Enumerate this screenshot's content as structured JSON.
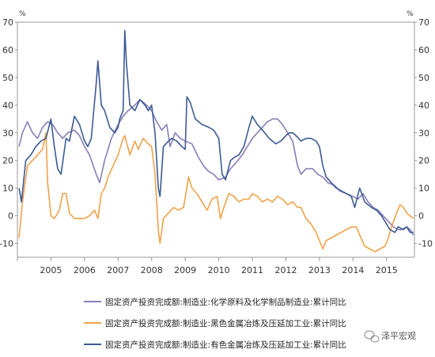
{
  "chart_data": {
    "type": "line",
    "unit_left": "%",
    "unit_right": "%",
    "ylim": [
      -15,
      70
    ],
    "yticks": [
      -10,
      0,
      10,
      20,
      30,
      40,
      50,
      60,
      70
    ],
    "xlim": [
      2004.0,
      2015.83
    ],
    "x_tick_labels": [
      {
        "x": 2005,
        "label": "2005"
      },
      {
        "x": 2006,
        "label": "2006"
      },
      {
        "x": 2007,
        "label": "2007"
      },
      {
        "x": 2008,
        "label": "2008"
      },
      {
        "x": 2009,
        "label": "2009"
      },
      {
        "x": 2010,
        "label": "2010"
      },
      {
        "x": 2011,
        "label": "2011"
      },
      {
        "x": 2012,
        "label": "2012"
      },
      {
        "x": 2013,
        "label": "2013"
      },
      {
        "x": 2014,
        "label": "2014"
      },
      {
        "x": 2015,
        "label": "2015"
      }
    ],
    "grid": false,
    "legend_position": "bottom",
    "series": [
      {
        "name": "固定资产投资完成额:制造业:化学原料及化学制品制造业:累计同比",
        "color": "#8a7db8",
        "points": [
          [
            2004.05,
            25
          ],
          [
            2004.15,
            30
          ],
          [
            2004.3,
            34
          ],
          [
            2004.45,
            30
          ],
          [
            2004.6,
            28
          ],
          [
            2004.75,
            32
          ],
          [
            2004.9,
            34
          ],
          [
            2005.05,
            33
          ],
          [
            2005.2,
            30
          ],
          [
            2005.35,
            28
          ],
          [
            2005.5,
            30
          ],
          [
            2005.7,
            31
          ],
          [
            2005.85,
            29
          ],
          [
            2006.0,
            25
          ],
          [
            2006.15,
            22
          ],
          [
            2006.35,
            15
          ],
          [
            2006.45,
            12
          ],
          [
            2006.6,
            20
          ],
          [
            2006.8,
            28
          ],
          [
            2007.0,
            33
          ],
          [
            2007.15,
            36
          ],
          [
            2007.3,
            38
          ],
          [
            2007.5,
            40
          ],
          [
            2007.65,
            42
          ],
          [
            2007.85,
            40
          ],
          [
            2008.0,
            38
          ],
          [
            2008.15,
            34
          ],
          [
            2008.3,
            31
          ],
          [
            2008.45,
            33
          ],
          [
            2008.55,
            25
          ],
          [
            2008.7,
            30
          ],
          [
            2008.85,
            28
          ],
          [
            2009.0,
            27
          ],
          [
            2009.2,
            26
          ],
          [
            2009.4,
            21
          ],
          [
            2009.55,
            18
          ],
          [
            2009.7,
            16
          ],
          [
            2009.85,
            15
          ],
          [
            2010.0,
            13
          ],
          [
            2010.2,
            14
          ],
          [
            2010.35,
            17
          ],
          [
            2010.5,
            19
          ],
          [
            2010.7,
            22
          ],
          [
            2010.85,
            25
          ],
          [
            2011.0,
            28
          ],
          [
            2011.15,
            30
          ],
          [
            2011.3,
            32
          ],
          [
            2011.45,
            34
          ],
          [
            2011.6,
            35
          ],
          [
            2011.75,
            35
          ],
          [
            2011.9,
            33
          ],
          [
            2012.05,
            30
          ],
          [
            2012.2,
            27
          ],
          [
            2012.35,
            18
          ],
          [
            2012.45,
            15
          ],
          [
            2012.6,
            17
          ],
          [
            2012.8,
            17
          ],
          [
            2012.95,
            15
          ],
          [
            2013.1,
            14
          ],
          [
            2013.25,
            12
          ],
          [
            2013.45,
            11
          ],
          [
            2013.6,
            9
          ],
          [
            2013.8,
            8
          ],
          [
            2014.0,
            7
          ],
          [
            2014.15,
            6
          ],
          [
            2014.3,
            8
          ],
          [
            2014.45,
            5
          ],
          [
            2014.6,
            3
          ],
          [
            2014.75,
            2
          ],
          [
            2014.9,
            0
          ],
          [
            2015.05,
            -2
          ],
          [
            2015.2,
            -4
          ],
          [
            2015.35,
            -5
          ],
          [
            2015.45,
            -5
          ],
          [
            2015.6,
            -4
          ],
          [
            2015.7,
            -5
          ],
          [
            2015.8,
            -7
          ]
        ]
      },
      {
        "name": "固定资产投资完成额:制造业:黑色金属冶炼及压延加工业:累计同比",
        "color": "#f0a24a",
        "points": [
          [
            2004.05,
            -8
          ],
          [
            2004.15,
            5
          ],
          [
            2004.3,
            18
          ],
          [
            2004.45,
            20
          ],
          [
            2004.6,
            22
          ],
          [
            2004.75,
            24
          ],
          [
            2004.85,
            30
          ],
          [
            2004.9,
            12
          ],
          [
            2005.0,
            0
          ],
          [
            2005.1,
            -1
          ],
          [
            2005.25,
            2
          ],
          [
            2005.35,
            8
          ],
          [
            2005.45,
            8
          ],
          [
            2005.55,
            1
          ],
          [
            2005.7,
            -1
          ],
          [
            2005.85,
            -1
          ],
          [
            2006.0,
            -1
          ],
          [
            2006.15,
            0
          ],
          [
            2006.3,
            2
          ],
          [
            2006.4,
            -1
          ],
          [
            2006.5,
            8
          ],
          [
            2006.6,
            10
          ],
          [
            2006.7,
            14
          ],
          [
            2006.85,
            18
          ],
          [
            2007.0,
            22
          ],
          [
            2007.15,
            28
          ],
          [
            2007.2,
            29
          ],
          [
            2007.35,
            22
          ],
          [
            2007.5,
            27
          ],
          [
            2007.6,
            24
          ],
          [
            2007.75,
            28
          ],
          [
            2007.9,
            26
          ],
          [
            2008.0,
            25
          ],
          [
            2008.1,
            15
          ],
          [
            2008.2,
            -5
          ],
          [
            2008.25,
            -10
          ],
          [
            2008.35,
            -1
          ],
          [
            2008.5,
            1
          ],
          [
            2008.65,
            3
          ],
          [
            2008.8,
            2
          ],
          [
            2008.95,
            3
          ],
          [
            2009.1,
            14
          ],
          [
            2009.2,
            10
          ],
          [
            2009.35,
            8
          ],
          [
            2009.5,
            5
          ],
          [
            2009.65,
            2
          ],
          [
            2009.8,
            6
          ],
          [
            2009.95,
            7
          ],
          [
            2010.05,
            -1
          ],
          [
            2010.15,
            3
          ],
          [
            2010.3,
            8
          ],
          [
            2010.45,
            7
          ],
          [
            2010.6,
            5
          ],
          [
            2010.75,
            6
          ],
          [
            2010.9,
            6
          ],
          [
            2011.0,
            8
          ],
          [
            2011.15,
            7
          ],
          [
            2011.3,
            5
          ],
          [
            2011.45,
            6
          ],
          [
            2011.6,
            5
          ],
          [
            2011.75,
            7
          ],
          [
            2011.9,
            6
          ],
          [
            2012.05,
            4
          ],
          [
            2012.2,
            5
          ],
          [
            2012.35,
            3
          ],
          [
            2012.45,
            3
          ],
          [
            2012.6,
            -1
          ],
          [
            2012.75,
            -3
          ],
          [
            2012.9,
            -6
          ],
          [
            2013.0,
            -9
          ],
          [
            2013.1,
            -12
          ],
          [
            2013.2,
            -9
          ],
          [
            2013.35,
            -8
          ],
          [
            2013.5,
            -7
          ],
          [
            2013.65,
            -6
          ],
          [
            2013.8,
            -5
          ],
          [
            2013.95,
            -4
          ],
          [
            2014.1,
            -4
          ],
          [
            2014.2,
            -7
          ],
          [
            2014.35,
            -11
          ],
          [
            2014.5,
            -12
          ],
          [
            2014.65,
            -13
          ],
          [
            2014.8,
            -12
          ],
          [
            2014.95,
            -11
          ],
          [
            2015.05,
            -8
          ],
          [
            2015.15,
            -4
          ],
          [
            2015.3,
            1
          ],
          [
            2015.4,
            4
          ],
          [
            2015.5,
            3
          ],
          [
            2015.6,
            1
          ],
          [
            2015.7,
            0
          ],
          [
            2015.8,
            -1
          ]
        ]
      },
      {
        "name": "固定资产投资完成额:制造业:有色金属冶炼及压延加工业:累计同比",
        "color": "#3d5a94",
        "points": [
          [
            2004.05,
            10
          ],
          [
            2004.12,
            5
          ],
          [
            2004.25,
            20
          ],
          [
            2004.4,
            22
          ],
          [
            2004.55,
            25
          ],
          [
            2004.7,
            27
          ],
          [
            2004.85,
            28
          ],
          [
            2005.0,
            35
          ],
          [
            2005.1,
            25
          ],
          [
            2005.2,
            17
          ],
          [
            2005.3,
            15
          ],
          [
            2005.45,
            28
          ],
          [
            2005.55,
            27
          ],
          [
            2005.7,
            36
          ],
          [
            2005.85,
            33
          ],
          [
            2006.0,
            27
          ],
          [
            2006.1,
            25
          ],
          [
            2006.2,
            28
          ],
          [
            2006.35,
            48
          ],
          [
            2006.4,
            56
          ],
          [
            2006.5,
            40
          ],
          [
            2006.6,
            38
          ],
          [
            2006.75,
            32
          ],
          [
            2006.9,
            30
          ],
          [
            2007.0,
            32
          ],
          [
            2007.05,
            35
          ],
          [
            2007.15,
            38
          ],
          [
            2007.2,
            67
          ],
          [
            2007.25,
            55
          ],
          [
            2007.35,
            40
          ],
          [
            2007.5,
            38
          ],
          [
            2007.65,
            42
          ],
          [
            2007.8,
            40
          ],
          [
            2007.9,
            38
          ],
          [
            2008.0,
            40
          ],
          [
            2008.1,
            30
          ],
          [
            2008.2,
            10
          ],
          [
            2008.25,
            7
          ],
          [
            2008.35,
            25
          ],
          [
            2008.5,
            27
          ],
          [
            2008.6,
            28
          ],
          [
            2008.75,
            27
          ],
          [
            2008.9,
            25
          ],
          [
            2009.0,
            24
          ],
          [
            2009.05,
            43
          ],
          [
            2009.15,
            41
          ],
          [
            2009.3,
            35
          ],
          [
            2009.5,
            33
          ],
          [
            2009.7,
            32
          ],
          [
            2009.85,
            31
          ],
          [
            2010.0,
            28
          ],
          [
            2010.1,
            15
          ],
          [
            2010.2,
            13
          ],
          [
            2010.35,
            20
          ],
          [
            2010.45,
            21
          ],
          [
            2010.6,
            22
          ],
          [
            2010.75,
            25
          ],
          [
            2010.9,
            32
          ],
          [
            2011.0,
            36
          ],
          [
            2011.15,
            33
          ],
          [
            2011.3,
            31
          ],
          [
            2011.5,
            28
          ],
          [
            2011.7,
            26
          ],
          [
            2011.85,
            27
          ],
          [
            2012.0,
            29
          ],
          [
            2012.1,
            30
          ],
          [
            2012.2,
            30
          ],
          [
            2012.3,
            29
          ],
          [
            2012.45,
            27
          ],
          [
            2012.6,
            28
          ],
          [
            2012.75,
            28
          ],
          [
            2012.9,
            27
          ],
          [
            2013.0,
            25
          ],
          [
            2013.1,
            18
          ],
          [
            2013.2,
            14
          ],
          [
            2013.35,
            12
          ],
          [
            2013.5,
            10
          ],
          [
            2013.65,
            9
          ],
          [
            2013.8,
            8
          ],
          [
            2013.95,
            7
          ],
          [
            2014.05,
            3
          ],
          [
            2014.2,
            10
          ],
          [
            2014.35,
            5
          ],
          [
            2014.45,
            4
          ],
          [
            2014.55,
            3
          ],
          [
            2014.7,
            2
          ],
          [
            2014.85,
            0
          ],
          [
            2015.0,
            -3
          ],
          [
            2015.1,
            -5
          ],
          [
            2015.25,
            -6
          ],
          [
            2015.35,
            -4
          ],
          [
            2015.5,
            -5
          ],
          [
            2015.6,
            -4
          ],
          [
            2015.7,
            -6
          ],
          [
            2015.8,
            -6
          ]
        ]
      }
    ]
  },
  "watermark": {
    "text": "泽平宏观"
  }
}
